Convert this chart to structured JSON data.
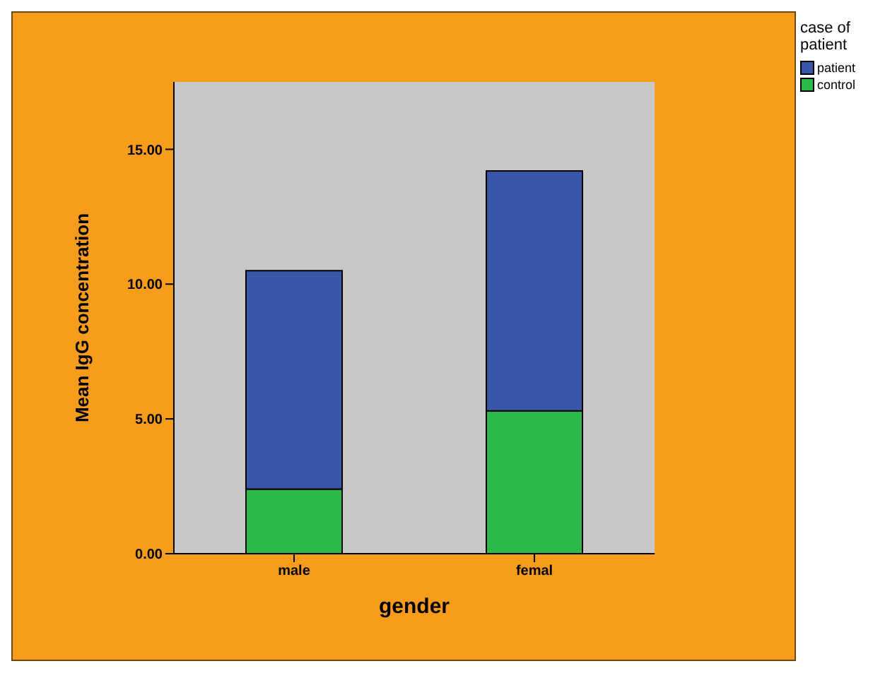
{
  "chart_data": {
    "type": "bar",
    "xlabel": "gender",
    "ylabel": "Mean IgG concentration",
    "legend_title": "case of patient",
    "categories": [
      "male",
      "femal"
    ],
    "stacked": true,
    "series": [
      {
        "name": "control",
        "color": "#2db84a",
        "values": [
          2.4,
          5.3
        ]
      },
      {
        "name": "patient",
        "color": "#3a56a8",
        "values": [
          8.1,
          8.9
        ]
      }
    ],
    "ylim": [
      0,
      17.5
    ],
    "yticks": [
      {
        "value": 0,
        "label": "0.00"
      },
      {
        "value": 5,
        "label": "5.00"
      },
      {
        "value": 10,
        "label": "10.00"
      },
      {
        "value": 15,
        "label": "15.00"
      }
    ],
    "grid": false,
    "legend": "top right"
  }
}
